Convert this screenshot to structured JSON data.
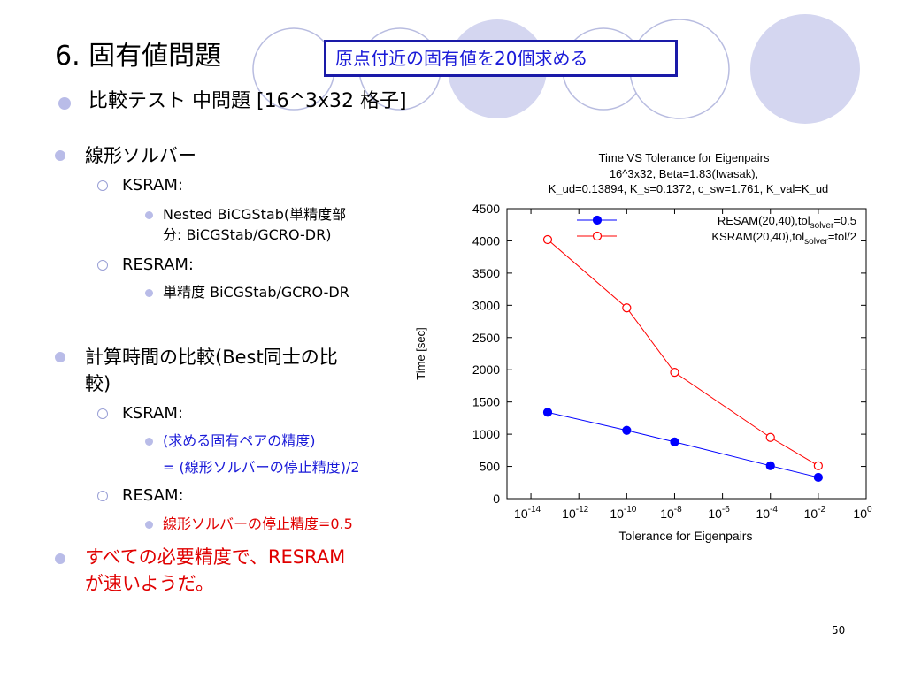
{
  "slide": {
    "title": "6. 固有値問題",
    "callout": "原点付近の固有値を20個求める",
    "subtitle": "比較テスト 中問題 [16^3x32 格子]",
    "items": {
      "solver": "線形ソルバー",
      "ksram_label": "KSRAM:",
      "ksram_detail_1": "Nested BiCGStab(単精度部",
      "ksram_detail_2": "分: BiCGStab/GCRO-DR)",
      "resram_label": "RESRAM:",
      "resram_detail": "単精度 BiCGStab/GCRO-DR",
      "compare_1": "計算時間の比較(Best同士の比",
      "compare_2": "較)",
      "ksram2_label": "KSRAM:",
      "ksram2_detail_1": "(求める固有ペアの精度)",
      "ksram2_detail_2": "= (線形ソルバーの停止精度)/2",
      "resam2_label": "RESAM:",
      "resam2_detail": "線形ソルバーの停止精度=0.5",
      "conclusion_1": "すべての必要精度で、RESRAM",
      "conclusion_2": "が速いようだ。"
    },
    "page_number": "50"
  },
  "chart_data": {
    "type": "line",
    "title": "Time VS Tolerance for Eigenpairs",
    "subtitle_line1": "16^3x32, Beta=1.83(Iwasak),",
    "subtitle_line2": "K_ud=0.13894, K_s=0.1372, c_sw=1.761, K_val=K_ud",
    "xlabel": "Tolerance for Eigenpairs",
    "ylabel": "Time [sec]",
    "x_scale": "log",
    "x_range": [
      1e-15,
      1
    ],
    "ylim": [
      0,
      4500
    ],
    "yticks": [
      "0",
      "500",
      "1000",
      "1500",
      "2000",
      "2500",
      "3000",
      "3500",
      "4000",
      "4500"
    ],
    "xticks": [
      {
        "base": "10",
        "exp": "-14",
        "value": 1e-14
      },
      {
        "base": "10",
        "exp": "-12",
        "value": 1e-12
      },
      {
        "base": "10",
        "exp": "-10",
        "value": 1e-10
      },
      {
        "base": "10",
        "exp": "-8",
        "value": 1e-08
      },
      {
        "base": "10",
        "exp": "-6",
        "value": 1e-06
      },
      {
        "base": "10",
        "exp": "-4",
        "value": 0.0001
      },
      {
        "base": "10",
        "exp": "-2",
        "value": 0.01
      },
      {
        "base": "10",
        "exp": "0",
        "value": 1
      }
    ],
    "legend_position": "top-right",
    "series": [
      {
        "name": "RESAM(20,40),tol_solver=0.5",
        "legend_main": "RESAM(20,40),tol",
        "legend_sub": "solver",
        "legend_tail": "=0.5",
        "color": "#0000ff",
        "marker": "filled-circle",
        "x": [
          5e-14,
          1e-10,
          1e-08,
          0.0001,
          0.01
        ],
        "y": [
          1340,
          1060,
          880,
          510,
          330
        ]
      },
      {
        "name": "KSRAM(20,40),tol_solver=tol/2",
        "legend_main": "KSRAM(20,40),tol",
        "legend_sub": "solver",
        "legend_tail": "=tol/2",
        "color": "#ff0000",
        "marker": "open-circle",
        "x": [
          5e-14,
          1e-10,
          1e-08,
          0.0001,
          0.01
        ],
        "y": [
          4020,
          2960,
          1960,
          950,
          510
        ]
      }
    ]
  }
}
